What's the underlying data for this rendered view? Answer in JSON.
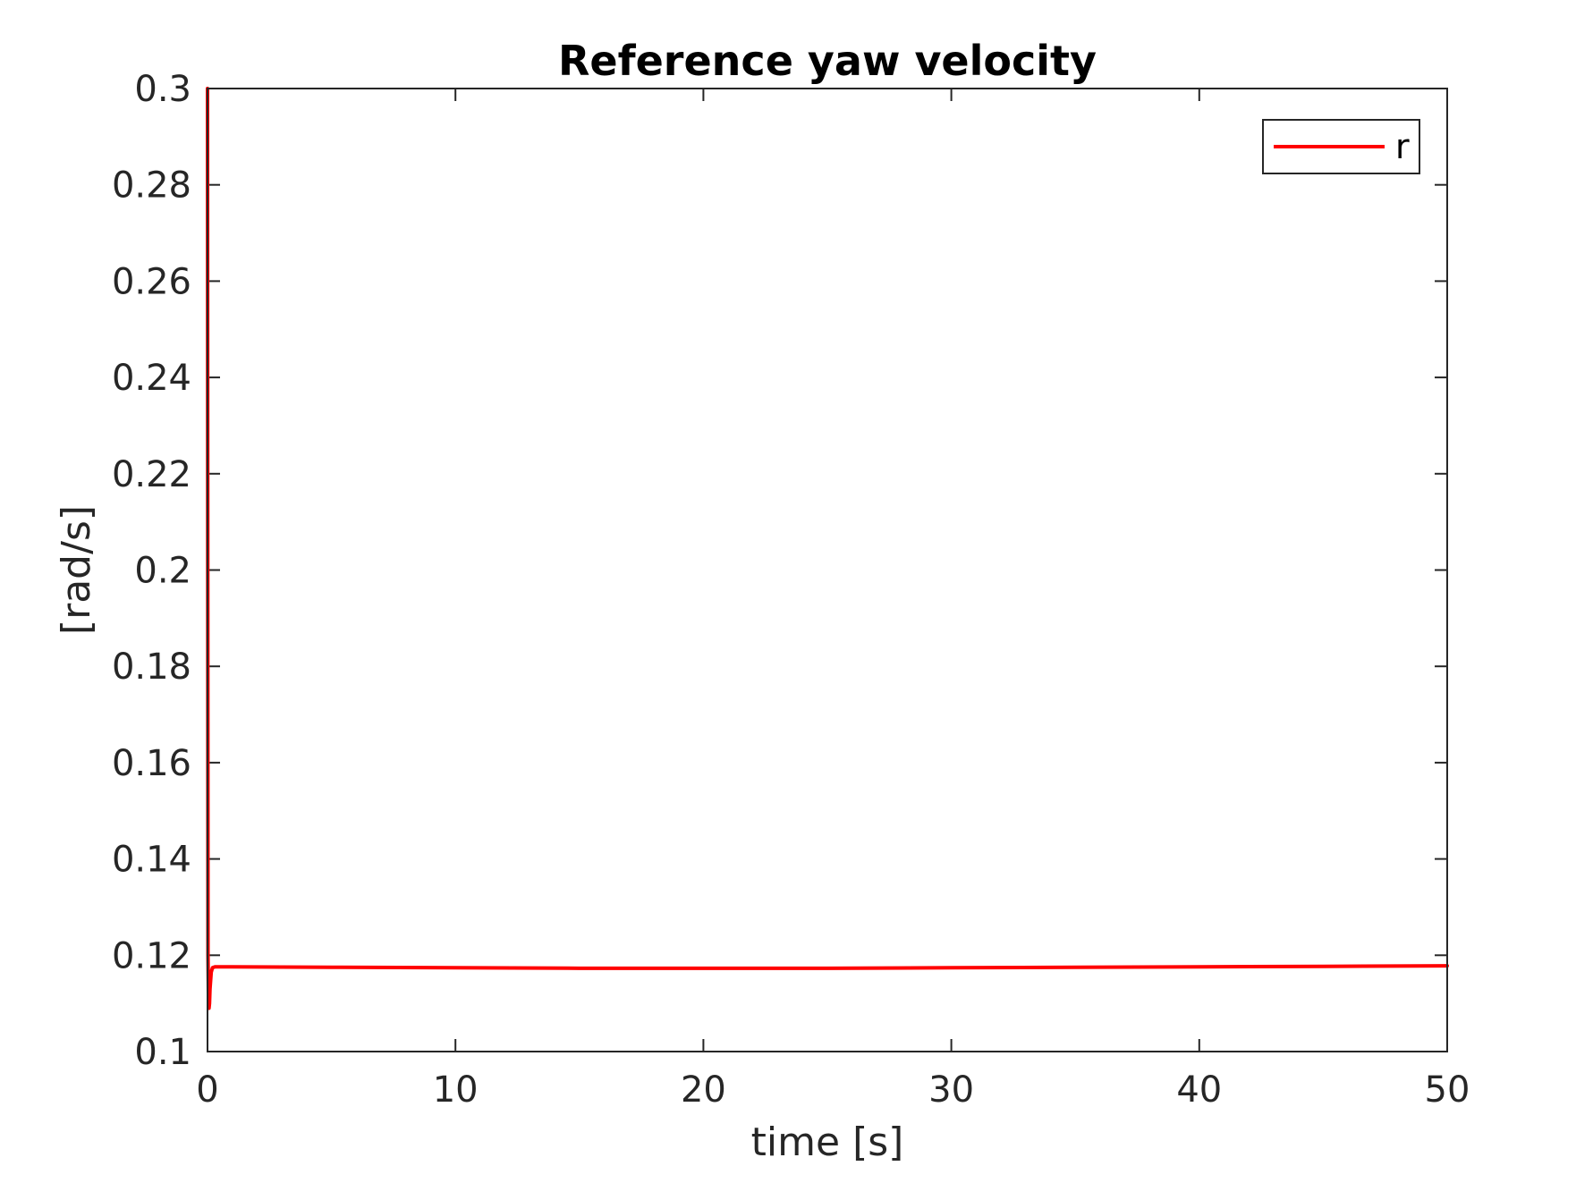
{
  "chart_data": {
    "type": "line",
    "title": "Reference yaw velocity",
    "xlabel": "time [s]",
    "ylabel": "[rad/s]",
    "xlim": [
      0,
      50
    ],
    "ylim": [
      0.1,
      0.3
    ],
    "xticks": [
      0,
      10,
      20,
      30,
      40,
      50
    ],
    "xtick_labels": [
      "0",
      "10",
      "20",
      "30",
      "40",
      "50"
    ],
    "yticks": [
      0.1,
      0.12,
      0.14,
      0.16,
      0.18,
      0.2,
      0.22,
      0.24,
      0.26,
      0.28,
      0.3
    ],
    "ytick_labels": [
      "0.1",
      "0.12",
      "0.14",
      "0.16",
      "0.18",
      "0.2",
      "0.22",
      "0.24",
      "0.26",
      "0.28",
      "0.3"
    ],
    "grid": false,
    "legend_position": "top-right",
    "series": [
      {
        "name": "r",
        "color": "#ff0000",
        "x": [
          0,
          0.01,
          0.02,
          0.04,
          0.06,
          0.08,
          0.1,
          0.15,
          0.2,
          0.3,
          0.5,
          1,
          5,
          10,
          15,
          20,
          25,
          30,
          35,
          40,
          45,
          50
        ],
        "y": [
          0.3,
          0.2,
          0.12,
          0.11,
          0.109,
          0.11,
          0.113,
          0.1165,
          0.1174,
          0.1176,
          0.1176,
          0.1176,
          0.1175,
          0.1174,
          0.1173,
          0.1173,
          0.1173,
          0.1174,
          0.1175,
          0.1176,
          0.1177,
          0.1178
        ]
      }
    ]
  }
}
